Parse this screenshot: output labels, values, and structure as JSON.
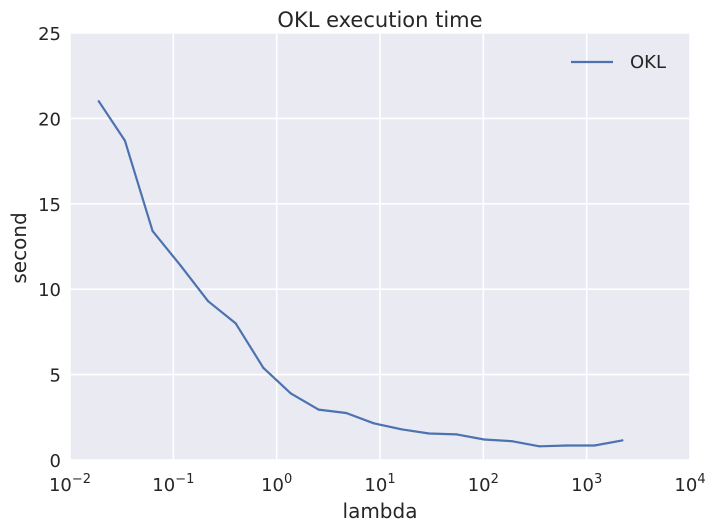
{
  "chart_data": {
    "type": "line",
    "title": "OKL execution time",
    "xlabel": "lambda",
    "ylabel": "second",
    "xscale": "log",
    "xlim": [
      0.01,
      10000
    ],
    "ylim": [
      0,
      25
    ],
    "grid": true,
    "legend_position": "top-right",
    "x_ticks": [
      {
        "value": 0.01,
        "base": "10",
        "exp": "−2"
      },
      {
        "value": 0.1,
        "base": "10",
        "exp": "−1"
      },
      {
        "value": 1,
        "base": "10",
        "exp": "0"
      },
      {
        "value": 10,
        "base": "10",
        "exp": "1"
      },
      {
        "value": 100,
        "base": "10",
        "exp": "2"
      },
      {
        "value": 1000,
        "base": "10",
        "exp": "3"
      },
      {
        "value": 10000,
        "base": "10",
        "exp": "4"
      }
    ],
    "y_ticks": [
      {
        "value": 0,
        "label": "0"
      },
      {
        "value": 5,
        "label": "5"
      },
      {
        "value": 10,
        "label": "10"
      },
      {
        "value": 15,
        "label": "15"
      },
      {
        "value": 20,
        "label": "20"
      },
      {
        "value": 25,
        "label": "25"
      }
    ],
    "series": [
      {
        "name": "OKL",
        "color": "#4c72b0",
        "x": [
          0.019,
          0.034,
          0.063,
          0.117,
          0.217,
          0.401,
          0.743,
          1.37,
          2.54,
          4.71,
          8.71,
          16.1,
          29.8,
          55.2,
          102,
          189,
          349,
          646,
          1190,
          2210
        ],
        "y": [
          21.0,
          18.7,
          13.4,
          11.4,
          9.3,
          8.0,
          5.4,
          3.9,
          2.95,
          2.75,
          2.15,
          1.8,
          1.55,
          1.5,
          1.2,
          1.1,
          0.8,
          0.85,
          0.85,
          1.15
        ]
      }
    ]
  }
}
